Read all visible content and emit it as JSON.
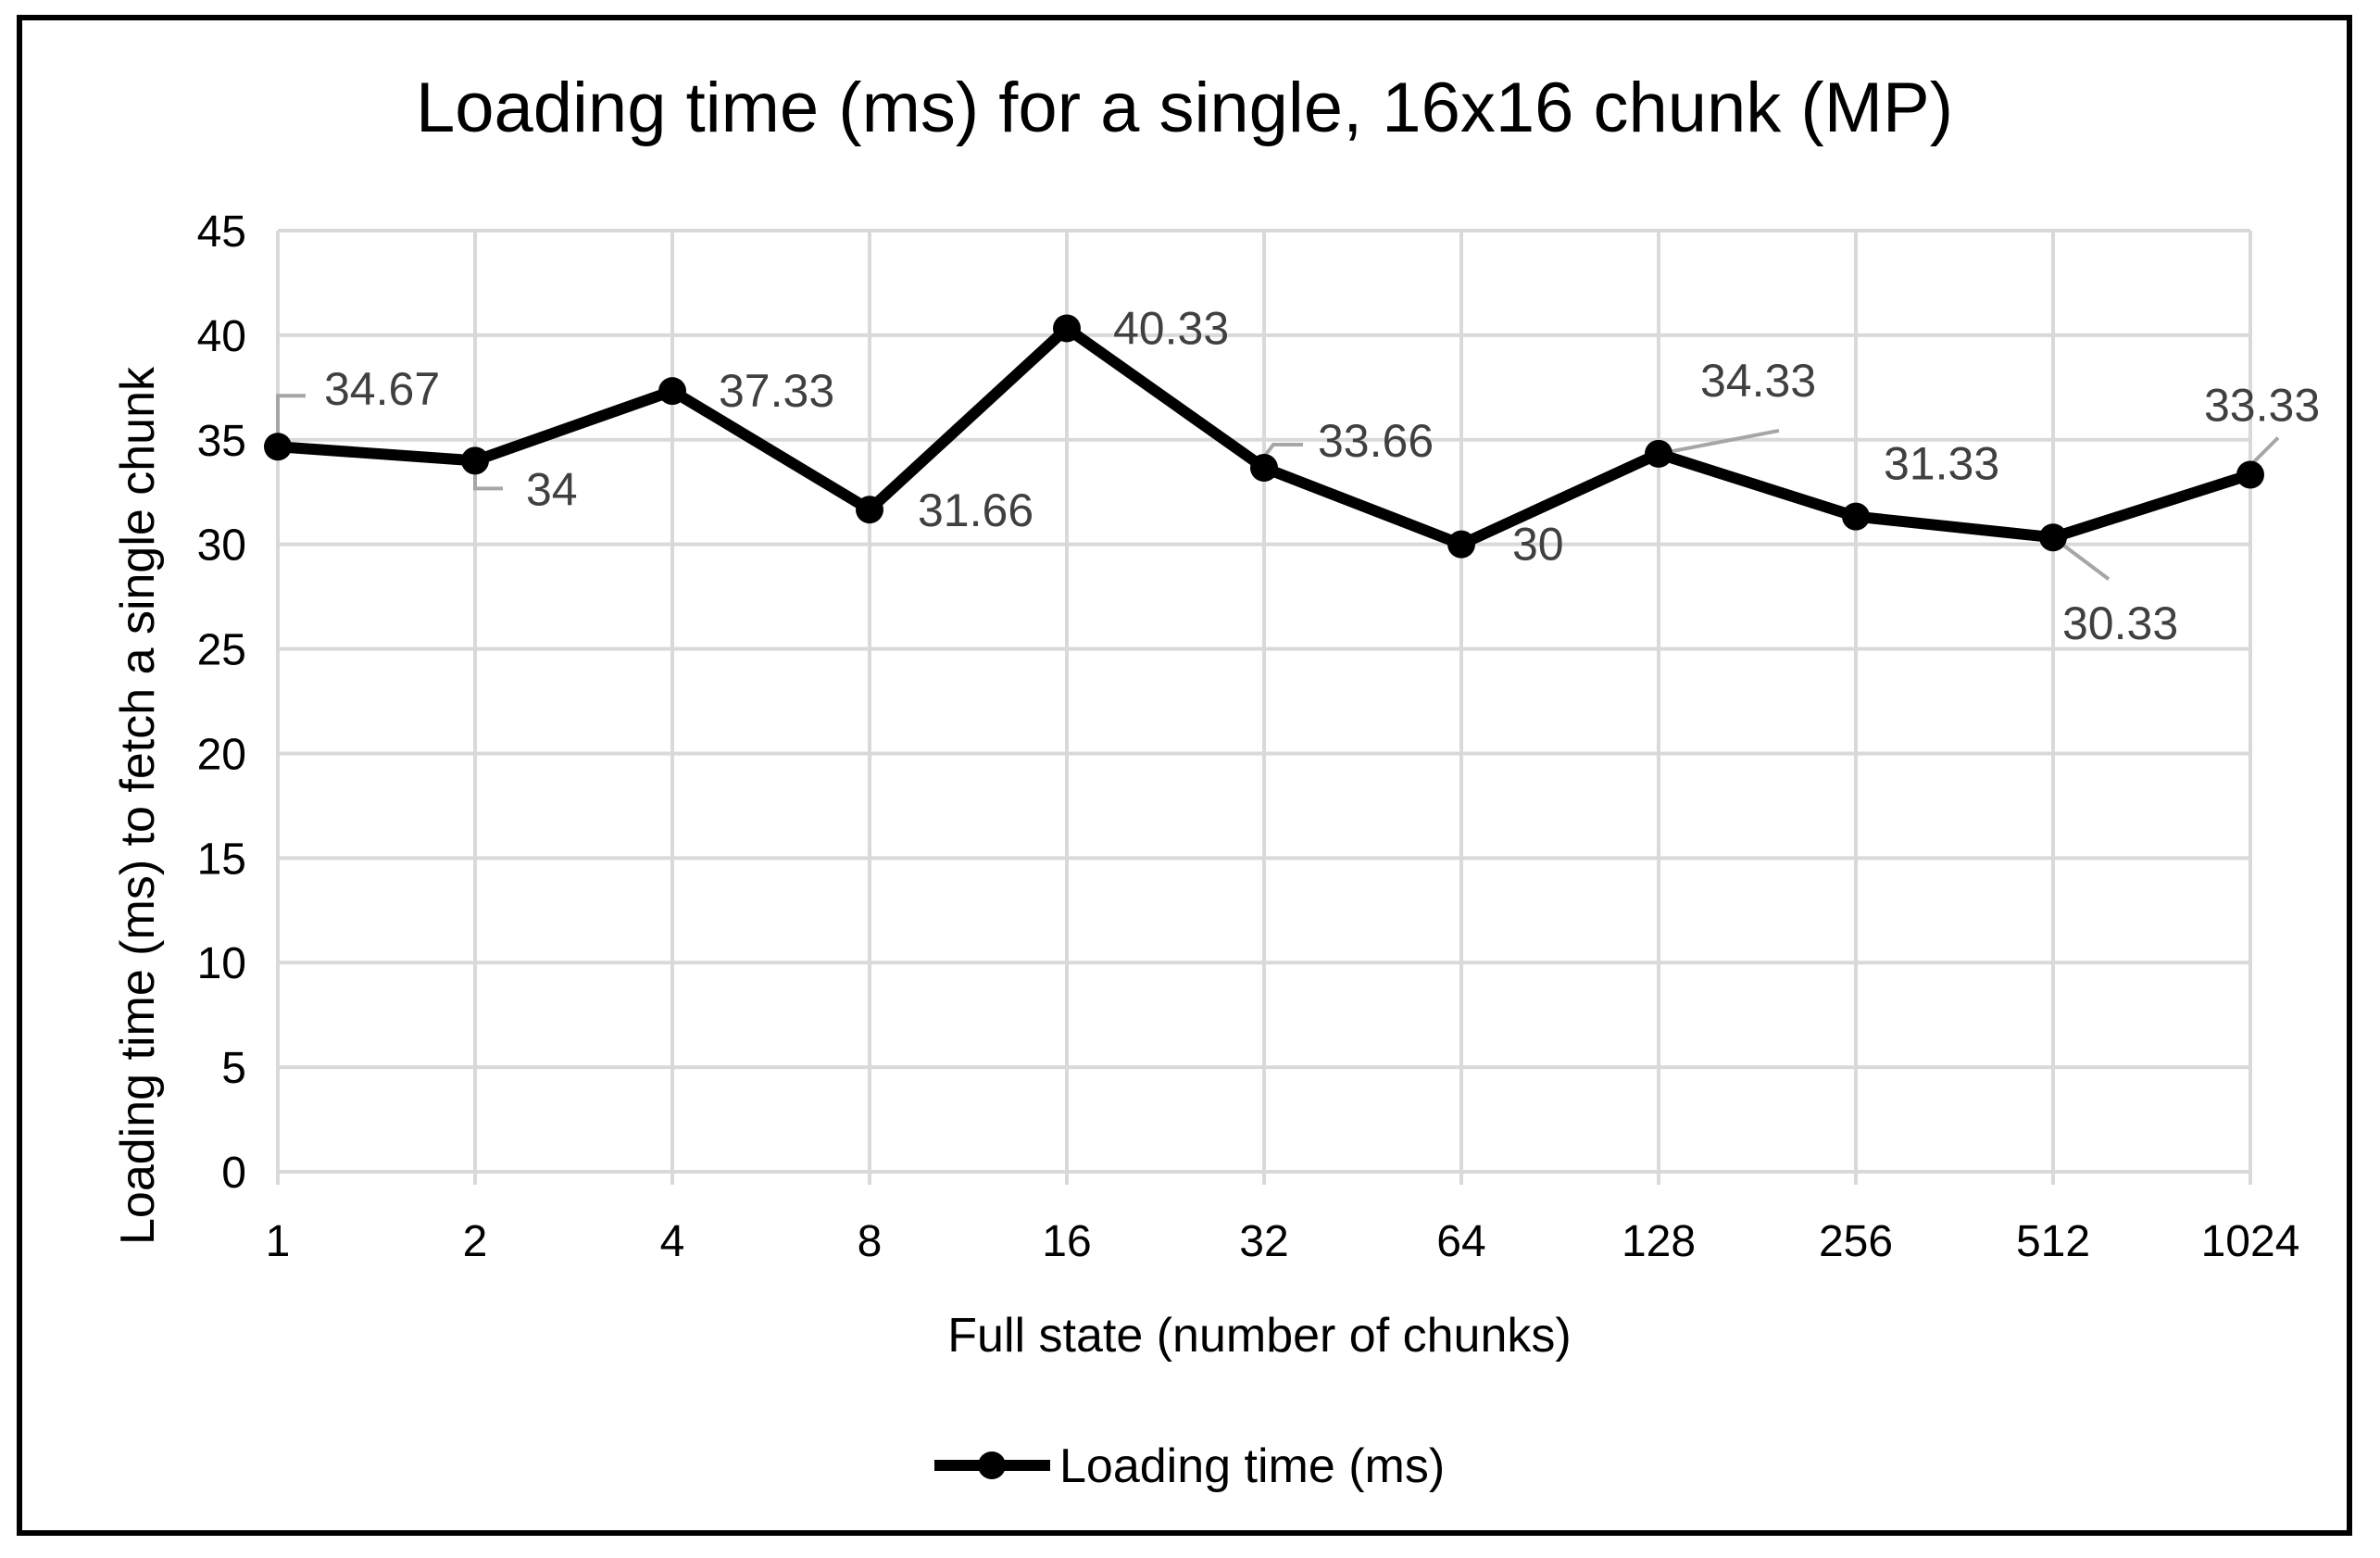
{
  "chart_data": {
    "type": "line",
    "title": "Loading time (ms) for a single, 16x16 chunk (MP)",
    "xlabel": "Full state (number of chunks)",
    "ylabel": "Loading time (ms) to fetch a single chunk",
    "categories": [
      "1",
      "2",
      "4",
      "8",
      "16",
      "32",
      "64",
      "128",
      "256",
      "512",
      "1024"
    ],
    "series": [
      {
        "name": "Loading time (ms)",
        "values": [
          34.67,
          34,
          37.33,
          31.66,
          40.33,
          33.66,
          30,
          34.33,
          31.33,
          30.33,
          33.33
        ],
        "color": "#000000",
        "marker": "circle"
      }
    ],
    "data_labels": [
      "34.67",
      "34",
      "37.33",
      "31.66",
      "40.33",
      "33.66",
      "30",
      "34.33",
      "31.33",
      "30.33",
      "33.33"
    ],
    "ylim": [
      0,
      45
    ],
    "yticks": [
      "0",
      "5",
      "10",
      "15",
      "20",
      "25",
      "30",
      "35",
      "40",
      "45"
    ],
    "grid": true,
    "legend": "bottom",
    "colors": {
      "grid": "#d9d9d9",
      "line": "#000000",
      "label": "#404040",
      "leader": "#a6a6a6"
    }
  }
}
